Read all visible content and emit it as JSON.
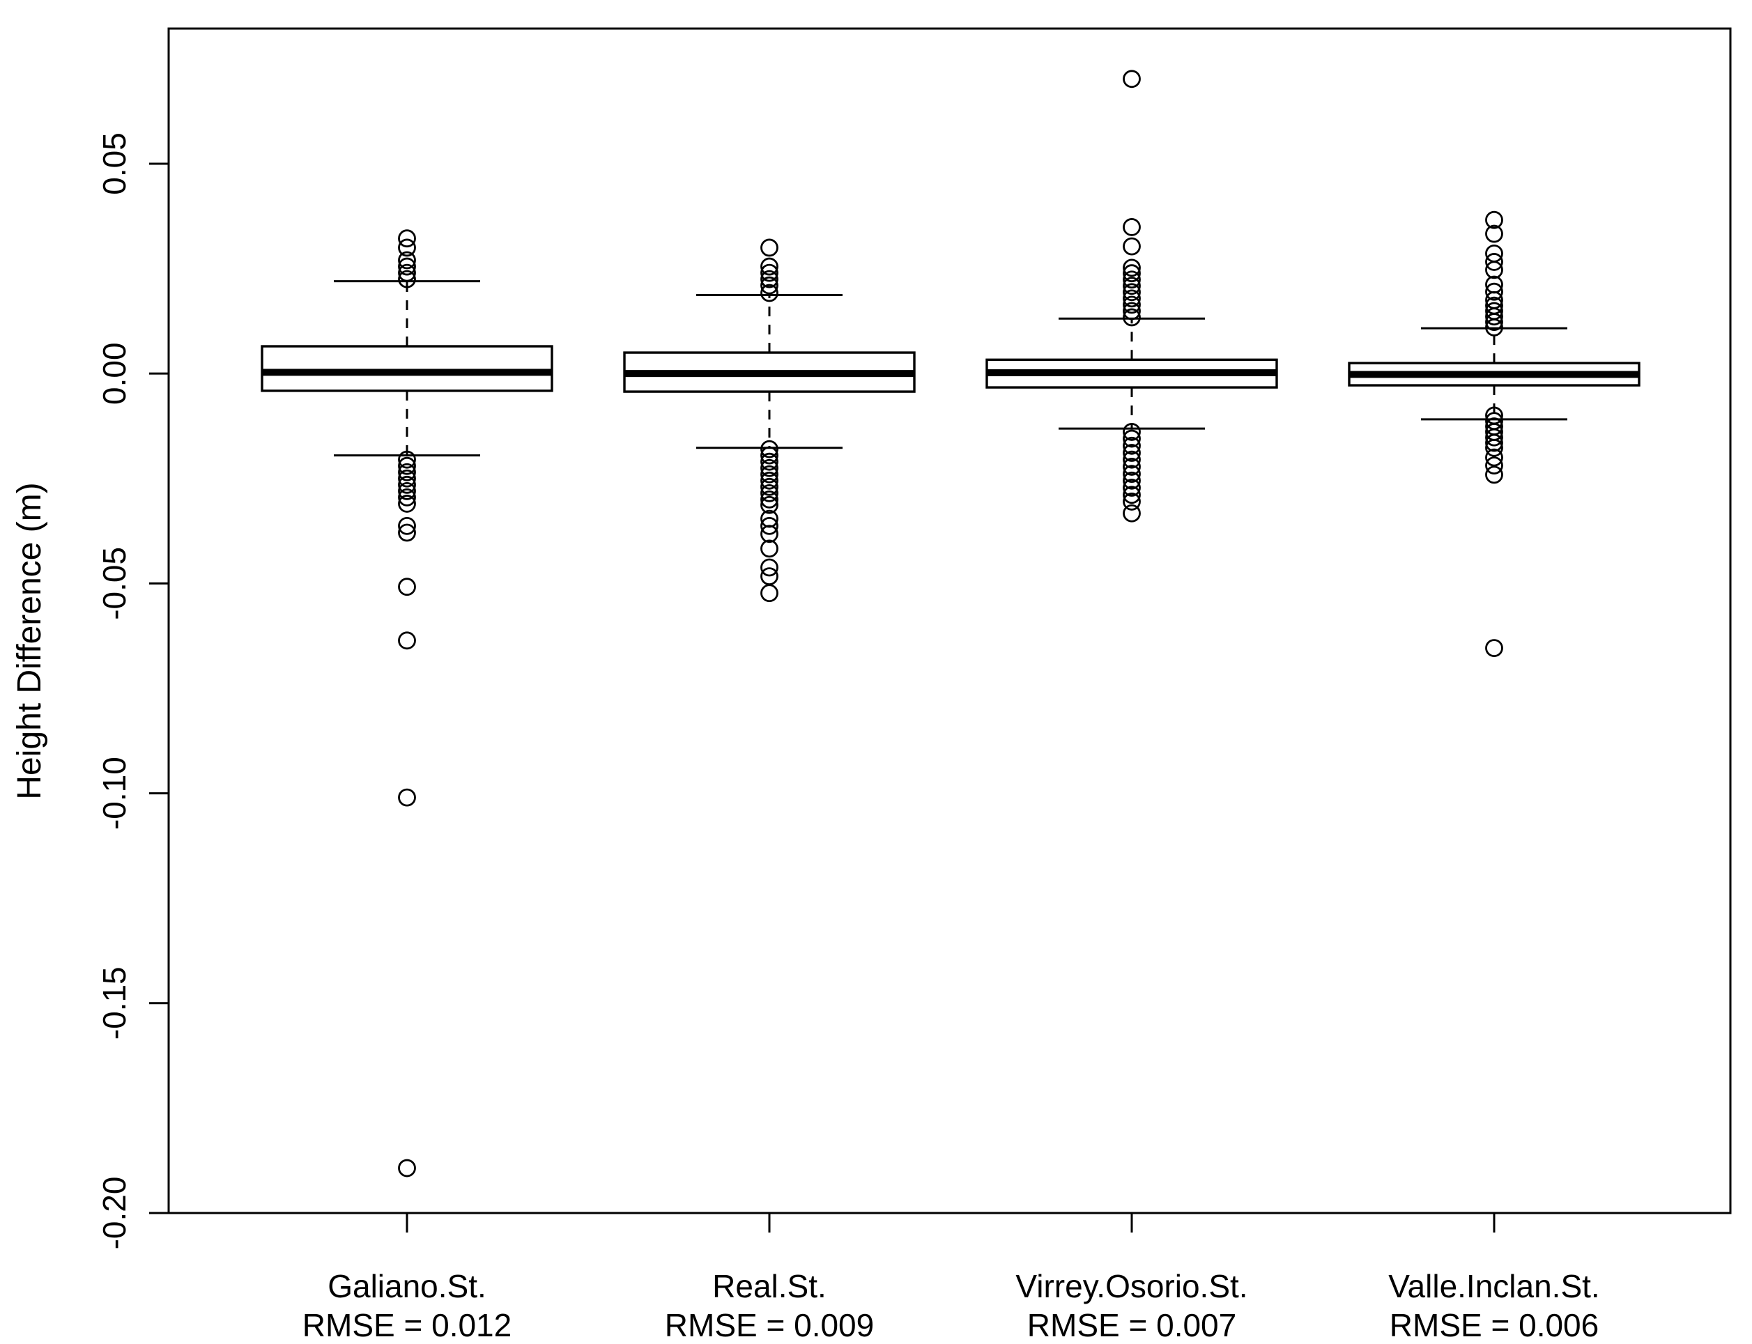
{
  "figure": {
    "background": "#ffffff",
    "line_color": "#000000"
  },
  "chart_data": {
    "type": "boxplot",
    "title": "",
    "xlabel": "",
    "ylabel": "Height Difference (m)",
    "ylim": [
      -0.2,
      0.0822
    ],
    "grid": false,
    "legend": "none",
    "yticks": [
      {
        "value": 0.05,
        "label": "0.05"
      },
      {
        "value": 0.0,
        "label": "0.00"
      },
      {
        "value": -0.05,
        "label": "-0.05"
      },
      {
        "value": -0.1,
        "label": "-0.10"
      },
      {
        "value": -0.15,
        "label": "-0.15"
      },
      {
        "value": -0.2,
        "label": "-0.20"
      }
    ],
    "groups": [
      {
        "label": "Galiano.St.",
        "rmse_label": "RMSE = 0.012",
        "rmse": 0.012,
        "stats": {
          "q1": -0.0041,
          "median": 0.0003,
          "q3": 0.0065,
          "whisker_low": -0.0195,
          "whisker_high": 0.022
        },
        "outliers": [
          0.0322,
          0.03,
          0.027,
          0.0255,
          0.024,
          0.0225,
          -0.0205,
          -0.022,
          -0.0235,
          -0.025,
          -0.0265,
          -0.028,
          -0.0295,
          -0.031,
          -0.0363,
          -0.0379,
          -0.0508,
          -0.0636,
          -0.101,
          -0.1893
        ]
      },
      {
        "label": "Real.St.",
        "rmse_label": "RMSE = 0.009",
        "rmse": 0.009,
        "stats": {
          "q1": -0.0043,
          "median": 0.0,
          "q3": 0.005,
          "whisker_low": -0.0177,
          "whisker_high": 0.0187
        },
        "outliers": [
          0.03,
          0.0255,
          0.024,
          0.0225,
          0.021,
          0.0192,
          -0.018,
          -0.0195,
          -0.021,
          -0.0225,
          -0.024,
          -0.0255,
          -0.027,
          -0.0285,
          -0.03,
          -0.0313,
          -0.0346,
          -0.0363,
          -0.0382,
          -0.0417,
          -0.0462,
          -0.0483,
          -0.0523
        ]
      },
      {
        "label": "Virrey.Osorio.St.",
        "rmse_label": "RMSE = 0.007",
        "rmse": 0.007,
        "stats": {
          "q1": -0.0033,
          "median": 0.0002,
          "q3": 0.0033,
          "whisker_low": -0.0131,
          "whisker_high": 0.0131
        },
        "outliers": [
          0.0702,
          0.0349,
          0.0303,
          0.0252,
          0.0239,
          0.0224,
          0.0209,
          0.0194,
          0.0179,
          0.0164,
          0.0149,
          0.0134,
          -0.0139,
          -0.0155,
          -0.0172,
          -0.0189,
          -0.0205,
          -0.0222,
          -0.0239,
          -0.0255,
          -0.0272,
          -0.0289,
          -0.0305,
          -0.0333
        ]
      },
      {
        "label": "Valle.Inclan.St.",
        "rmse_label": "RMSE = 0.006",
        "rmse": 0.006,
        "stats": {
          "q1": -0.0028,
          "median": -0.0002,
          "q3": 0.0025,
          "whisker_low": -0.0109,
          "whisker_high": 0.0108
        },
        "outliers": [
          0.0366,
          0.0333,
          0.0286,
          0.0266,
          0.0247,
          0.0212,
          0.0195,
          0.0175,
          0.0162,
          0.0149,
          0.0136,
          0.0123,
          0.011,
          -0.01,
          -0.0113,
          -0.0126,
          -0.0139,
          -0.0152,
          -0.0165,
          -0.0177,
          -0.02,
          -0.0219,
          -0.0241,
          -0.0654
        ]
      }
    ]
  }
}
